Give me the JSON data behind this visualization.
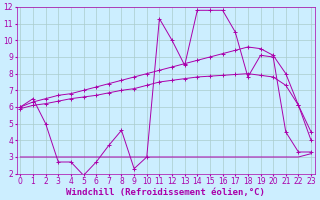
{
  "background_color": "#cceeff",
  "grid_color": "#aacccc",
  "line_color": "#aa00aa",
  "xlabel": "Windchill (Refroidissement éolien,°C)",
  "xlabel_color": "#aa00aa",
  "ylim": [
    2,
    12
  ],
  "xlim": [
    0,
    23
  ],
  "yticks": [
    2,
    3,
    4,
    5,
    6,
    7,
    8,
    9,
    10,
    11,
    12
  ],
  "xticks": [
    0,
    1,
    2,
    3,
    4,
    5,
    6,
    7,
    8,
    9,
    10,
    11,
    12,
    13,
    14,
    15,
    16,
    17,
    18,
    19,
    20,
    21,
    22,
    23
  ],
  "line1_x": [
    0,
    1,
    2,
    3,
    4,
    5,
    6,
    7,
    8,
    9,
    10,
    11,
    12,
    13,
    14,
    15,
    16,
    17,
    18,
    19,
    20,
    21,
    22,
    23
  ],
  "line1_y": [
    6.0,
    6.3,
    6.5,
    6.7,
    6.8,
    7.0,
    7.2,
    7.4,
    7.6,
    7.8,
    8.0,
    8.2,
    8.4,
    8.6,
    8.8,
    9.0,
    9.2,
    9.4,
    9.6,
    9.5,
    9.1,
    8.0,
    6.1,
    4.5
  ],
  "line2_x": [
    0,
    1,
    2,
    3,
    4,
    5,
    6,
    7,
    8,
    9,
    10,
    11,
    12,
    13,
    14,
    15,
    16,
    17,
    18,
    19,
    20,
    21,
    22,
    23
  ],
  "line2_y": [
    5.9,
    6.1,
    6.2,
    6.35,
    6.5,
    6.6,
    6.7,
    6.85,
    7.0,
    7.1,
    7.3,
    7.5,
    7.6,
    7.7,
    7.8,
    7.85,
    7.9,
    7.95,
    8.0,
    7.9,
    7.8,
    7.3,
    6.1,
    4.0
  ],
  "line3_x": [
    0,
    1,
    2,
    3,
    4,
    5,
    6,
    7,
    8,
    9,
    10,
    11,
    12,
    13,
    14,
    15,
    16,
    17,
    18,
    19,
    20,
    21,
    22,
    23
  ],
  "line3_y": [
    6.0,
    6.5,
    5.0,
    2.7,
    2.7,
    1.9,
    2.7,
    3.7,
    4.6,
    2.3,
    3.0,
    11.3,
    10.0,
    8.5,
    11.8,
    11.8,
    11.8,
    10.5,
    7.8,
    9.1,
    9.0,
    4.5,
    3.3,
    3.3
  ],
  "line4_x": [
    0,
    1,
    2,
    3,
    4,
    5,
    6,
    7,
    8,
    9,
    10,
    11,
    12,
    13,
    14,
    15,
    16,
    17,
    18,
    19,
    20,
    21,
    22,
    23
  ],
  "line4_y": [
    3.0,
    3.0,
    3.0,
    3.0,
    3.0,
    3.0,
    3.0,
    3.0,
    3.0,
    3.0,
    3.0,
    3.0,
    3.0,
    3.0,
    3.0,
    3.0,
    3.0,
    3.0,
    3.0,
    3.0,
    3.0,
    3.0,
    3.0,
    3.2
  ],
  "tick_fontsize": 5.5,
  "xlabel_fontsize": 6.5,
  "lw": 0.7,
  "marker_size": 2.5
}
